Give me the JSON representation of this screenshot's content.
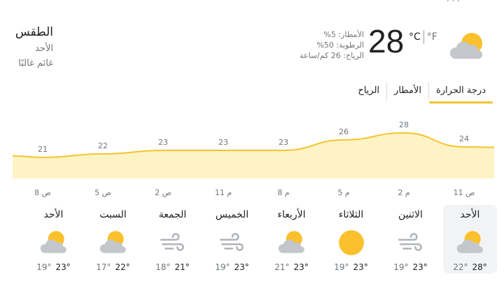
{
  "header": {
    "title": "الطقس",
    "day": "الأحد",
    "condition": "غائم غالبًا"
  },
  "current": {
    "temperature": "28",
    "unit_c": "°C",
    "unit_f": "°F",
    "precipitation": "الأمطار: 5%",
    "humidity": "الرطوبة: 50%",
    "wind": "الرياح: 26 كم/ساعة",
    "icon": "partly-cloudy-icon"
  },
  "tabs": [
    {
      "label": "درجة الحرارة",
      "active": true
    },
    {
      "label": "الأمطار",
      "active": false
    },
    {
      "label": "الرياح",
      "active": false
    }
  ],
  "chart_data": {
    "type": "area",
    "x": [
      "11 ص",
      "2 م",
      "5 م",
      "8 م",
      "11 م",
      "2 ص",
      "5 ص",
      "8 ص"
    ],
    "series": [
      {
        "values": [
          24,
          28,
          26,
          23,
          23,
          23,
          22,
          21
        ],
        "color": "#f4c430"
      }
    ],
    "value_labels": [
      "24",
      "28",
      "26",
      "23",
      "23",
      "23",
      "22",
      "21"
    ],
    "tick_labels": [
      "11 ص",
      "2 م",
      "5 م",
      "8 م",
      "11 م",
      "2 ص",
      "5 ص",
      "8 ص"
    ],
    "ylim": [
      15,
      32
    ]
  },
  "forecast": [
    {
      "day": "الأحد",
      "icon": "partly-cloudy-icon",
      "high": "28°",
      "low": "22°",
      "selected": true
    },
    {
      "day": "الاثنين",
      "icon": "wind-icon",
      "high": "23°",
      "low": "19°",
      "selected": false
    },
    {
      "day": "الثلاثاء",
      "icon": "sun-icon",
      "high": "23°",
      "low": "19°",
      "selected": false
    },
    {
      "day": "الأربعاء",
      "icon": "partly-cloudy-icon",
      "high": "23°",
      "low": "21°",
      "selected": false
    },
    {
      "day": "الخميس",
      "icon": "wind-icon",
      "high": "23°",
      "low": "19°",
      "selected": false
    },
    {
      "day": "الجمعة",
      "icon": "wind-icon",
      "high": "21°",
      "low": "18°",
      "selected": false
    },
    {
      "day": "السبت",
      "icon": "partly-cloudy-icon",
      "high": "22°",
      "low": "17°",
      "selected": false
    },
    {
      "day": "الأحد",
      "icon": "partly-cloudy-icon",
      "high": "23°",
      "low": "19°",
      "selected": false
    }
  ],
  "colors": {
    "accent": "#f4c430",
    "chart_fill": "#fdf3c4",
    "text_primary": "#202124",
    "text_secondary": "#70757a"
  }
}
